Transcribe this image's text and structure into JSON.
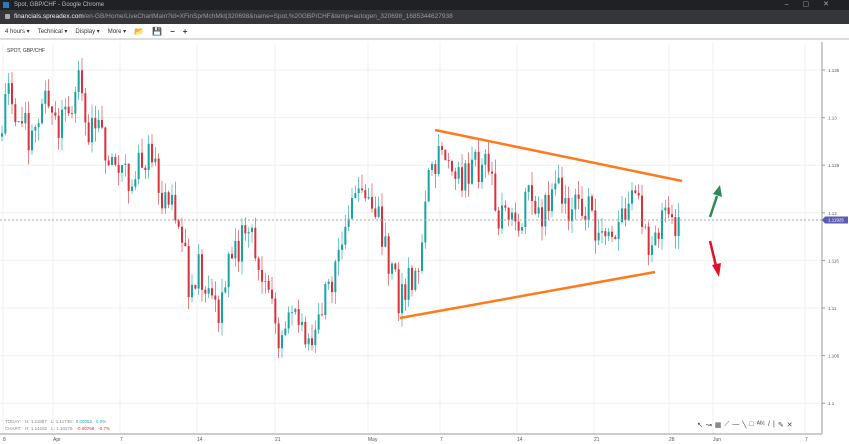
{
  "window": {
    "title": "Spot, GBP/CHF - Google Chrome"
  },
  "url": {
    "host": "financials.spreadex.com",
    "path": "/en-GB/Home/LiveChartMain?id=XFinSprMchMkt|320698&name=Spot,%20GBP/CHF&temp=autogen_320698_1685344627938"
  },
  "toolbar": {
    "interval": "4 hours",
    "technical": "Technical",
    "display": "Display",
    "more": "More",
    "icons": [
      "folder-open-icon",
      "save-icon",
      "zoom-out-icon",
      "zoom-in-icon"
    ]
  },
  "symbol": "SPOT, GBP/CHF",
  "stats": {
    "today": {
      "label": "TODAY:",
      "high": "H: 1.11887",
      "low": "L: 1.11735",
      "change": "0.00052",
      "pct": "0.0%"
    },
    "chart": {
      "label": "CHART:",
      "high": "H: 1.14182",
      "low": "L: 1.10276",
      "change": "-0.00768",
      "pct": "-0.7%"
    }
  },
  "colors": {
    "up": "#1aa3a3",
    "down": "#d9313a",
    "trendline": "#ff7a1a",
    "arrow_up": "#2e8b57",
    "arrow_down": "#e0102a",
    "price_tag": "#5b5bb0"
  },
  "chart_data": {
    "type": "candlestick",
    "ylim": [
      1.0985,
      1.1375
    ],
    "y_ticks": [
      "1.135",
      "1.13",
      "1.125",
      "1.12",
      "1.115",
      "1.11",
      "1.105",
      "1.1"
    ],
    "y_tick_values": [
      1.135,
      1.13,
      1.125,
      1.12,
      1.115,
      1.11,
      1.105,
      1.1
    ],
    "x_ticks": [
      "8",
      "Apr",
      "7",
      "14",
      "21",
      "May",
      "7",
      "14",
      "21",
      "28",
      "Jun",
      "7"
    ],
    "current_price": "1.11925",
    "current_price_value": 1.11925,
    "closes": [
      1.128,
      1.132,
      1.13,
      1.128,
      1.13,
      1.132,
      1.129,
      1.131,
      1.133,
      1.128,
      1.129,
      1.126,
      1.125,
      1.124,
      1.125,
      1.126,
      1.123,
      1.121,
      1.118,
      1.113,
      1.114,
      1.112,
      1.11,
      1.114,
      1.116,
      1.119,
      1.115,
      1.112,
      1.107,
      1.109,
      1.11,
      1.106,
      1.108,
      1.112,
      1.116,
      1.119,
      1.124,
      1.122,
      1.12,
      1.115,
      1.111,
      1.113,
      1.114,
      1.125,
      1.126,
      1.124,
      1.123,
      1.124,
      1.125,
      1.124,
      1.12,
      1.118,
      1.12,
      1.121,
      1.119,
      1.122,
      1.123,
      1.121,
      1.122,
      1.12,
      1.116,
      1.117,
      1.119,
      1.121,
      1.12,
      1.117,
      1.118,
      1.119,
      1.1192
    ],
    "annotations": [
      "symmetrical-triangle-trendlines",
      "up-arrow",
      "down-arrow"
    ]
  },
  "drawtools": [
    "cursor-icon",
    "curve-icon",
    "grid-icon",
    "fib-icon",
    "hline-icon",
    "line-icon",
    "rectangle-icon",
    "text-icon",
    "ray-icon",
    "separator",
    "pencil-icon",
    "close-icon"
  ]
}
